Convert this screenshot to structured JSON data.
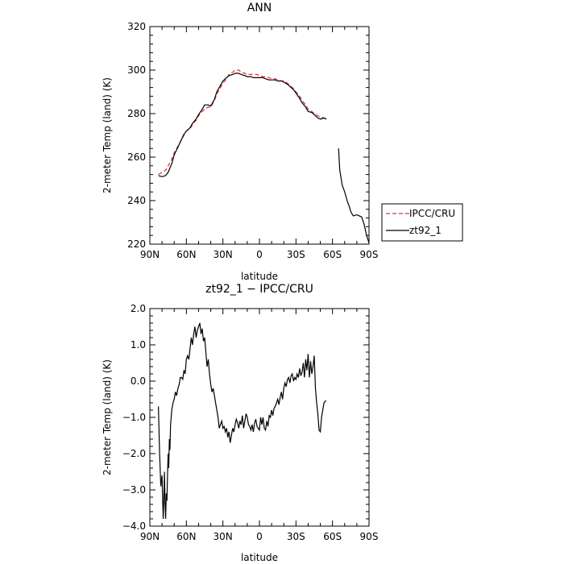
{
  "chart_data": [
    {
      "type": "line",
      "title": "ANN",
      "xlabel": "latitude",
      "ylabel": "2-meter Temp (land) (K)",
      "x_tick_labels": [
        "90N",
        "60N",
        "30N",
        "0",
        "30S",
        "60S",
        "90S"
      ],
      "y_tick_labels": [
        "220",
        "240",
        "260",
        "280",
        "300",
        "320"
      ],
      "xlim": [
        90,
        -90
      ],
      "ylim": [
        220,
        320
      ],
      "legend_position": "right",
      "series": [
        {
          "name": "IPCC/CRU",
          "color": "#e03030",
          "dash": true,
          "x": [
            83,
            80,
            77,
            75,
            72,
            70,
            67,
            65,
            62,
            60,
            57,
            55,
            52,
            50,
            47,
            45,
            42,
            40,
            37,
            35,
            32,
            30,
            27,
            25,
            22,
            20,
            17,
            15,
            12,
            10,
            7,
            5,
            2,
            0,
            -3,
            -5,
            -8,
            -10,
            -13,
            -15,
            -18,
            -20,
            -23,
            -25,
            -28,
            -30,
            -33,
            -35,
            -38,
            -40,
            -43,
            -45,
            -48,
            -50,
            -53,
            -55
          ],
          "y": [
            252,
            253,
            254,
            256,
            259,
            262,
            265,
            267,
            270,
            272,
            273,
            275,
            277,
            279,
            281,
            282,
            283,
            283,
            286,
            289,
            292,
            294,
            296,
            298,
            299,
            300,
            300,
            299,
            298.5,
            298,
            298,
            298,
            298,
            297.5,
            297,
            297,
            296.5,
            296,
            296,
            295.5,
            295,
            295,
            294,
            293,
            291.5,
            290,
            288,
            286,
            284,
            282,
            281,
            280,
            279,
            278.5,
            278,
            277.5
          ]
        },
        {
          "name": "zt92_1",
          "color": "#000000",
          "dash": false,
          "x": [
            83,
            80,
            77,
            75,
            72,
            70,
            67,
            65,
            62,
            60,
            57,
            55,
            52,
            50,
            47,
            45,
            42,
            40,
            37,
            35,
            32,
            30,
            27,
            25,
            22,
            20,
            17,
            15,
            12,
            10,
            7,
            5,
            2,
            0,
            -3,
            -5,
            -8,
            -10,
            -13,
            -15,
            -18,
            -20,
            -23,
            -25,
            -28,
            -30,
            -33,
            -35,
            -38,
            -40,
            -43,
            -45,
            -48,
            -50,
            -53,
            -55,
            -65,
            -66,
            -68,
            -70,
            -72,
            -74,
            -75,
            -77,
            -80,
            -82,
            -84,
            -86,
            -88,
            -90
          ],
          "y": [
            251.5,
            251,
            251.5,
            253,
            257,
            261,
            264.5,
            267,
            270.5,
            272,
            273.5,
            275.5,
            277.5,
            279.5,
            282,
            284,
            284,
            283.5,
            286.5,
            290,
            293,
            295,
            296.5,
            297.5,
            298,
            298.5,
            298.5,
            298,
            297.5,
            297,
            297,
            296.5,
            296.5,
            296.5,
            296.5,
            296,
            295.5,
            295.5,
            295.5,
            295,
            295,
            294.5,
            293.5,
            292.5,
            291,
            289.5,
            287,
            285,
            283,
            281,
            280.5,
            279.5,
            278,
            277.5,
            278,
            277.5,
            264,
            254,
            247,
            244,
            240,
            237,
            235,
            233,
            233.5,
            233,
            232.5,
            229,
            224,
            220.5
          ]
        }
      ]
    },
    {
      "type": "line",
      "title": "zt92_1 − IPCC/CRU",
      "xlabel": "latitude",
      "ylabel": "2-meter Temp (land) (K)",
      "x_tick_labels": [
        "90N",
        "60N",
        "30N",
        "0",
        "30S",
        "60S",
        "90S"
      ],
      "y_tick_labels": [
        "−4.0",
        "−3.0",
        "−2.0",
        "−1.0",
        "0.0",
        "1.0",
        "2.0"
      ],
      "xlim": [
        90,
        -90
      ],
      "ylim": [
        -4,
        2
      ],
      "series": [
        {
          "color": "#000000",
          "x": [
            83,
            82,
            81,
            80,
            79.5,
            79,
            78.5,
            78,
            77.5,
            77,
            76.5,
            76,
            75.5,
            75,
            74.5,
            74,
            73.5,
            73,
            72,
            71,
            70,
            69,
            68,
            67,
            66,
            65,
            64,
            63,
            62,
            61,
            60,
            59,
            58,
            57,
            56,
            55,
            54,
            53,
            52,
            51,
            50,
            49,
            48,
            47,
            46,
            45,
            44,
            43,
            42,
            41,
            40,
            39,
            38,
            37,
            36,
            35,
            34,
            33,
            32,
            31,
            30,
            29,
            28,
            27,
            26,
            25,
            24,
            23,
            22,
            21,
            20,
            19,
            18,
            17,
            16,
            15,
            14,
            13,
            12,
            11,
            10,
            9,
            8,
            7,
            6,
            5,
            4,
            3,
            2,
            1,
            0,
            -1,
            -2,
            -3,
            -4,
            -5,
            -6,
            -7,
            -8,
            -9,
            -10,
            -11,
            -12,
            -13,
            -14,
            -15,
            -16,
            -17,
            -18,
            -19,
            -20,
            -21,
            -22,
            -23,
            -24,
            -25,
            -26,
            -27,
            -28,
            -29,
            -30,
            -31,
            -32,
            -33,
            -34,
            -35,
            -36,
            -37,
            -38,
            -39,
            -40,
            -41,
            -42,
            -43,
            -44,
            -45,
            -46,
            -47,
            -48,
            -49,
            -50,
            -51,
            -52,
            -53,
            -54,
            -55
          ],
          "y": [
            -0.7,
            -2.0,
            -2.9,
            -2.6,
            -3.3,
            -3.8,
            -3.2,
            -2.5,
            -3.4,
            -3.8,
            -3.1,
            -3.3,
            -2.6,
            -2.0,
            -2.4,
            -1.6,
            -1.9,
            -1.2,
            -0.8,
            -0.6,
            -0.5,
            -0.3,
            -0.4,
            -0.2,
            -0.1,
            0.1,
            0.1,
            0.05,
            0.3,
            0.2,
            0.6,
            0.7,
            0.6,
            0.9,
            1.2,
            1.0,
            1.3,
            1.5,
            1.2,
            1.4,
            1.5,
            1.6,
            1.3,
            1.45,
            1.1,
            1.2,
            0.8,
            0.4,
            0.6,
            0.2,
            -0.1,
            -0.3,
            -0.2,
            -0.4,
            -0.6,
            -0.8,
            -1.0,
            -1.3,
            -1.2,
            -1.1,
            -1.3,
            -1.25,
            -1.4,
            -1.3,
            -1.55,
            -1.4,
            -1.7,
            -1.5,
            -1.3,
            -1.4,
            -1.2,
            -1.05,
            -1.15,
            -1.3,
            -1.1,
            -1.2,
            -0.95,
            -1.3,
            -1.1,
            -0.9,
            -1.0,
            -1.2,
            -1.25,
            -1.35,
            -1.2,
            -1.4,
            -1.15,
            -1.05,
            -1.25,
            -1.3,
            -1.35,
            -1.0,
            -1.2,
            -1.0,
            -1.3,
            -1.35,
            -1.1,
            -1.25,
            -0.95,
            -1.0,
            -0.8,
            -0.95,
            -0.75,
            -0.7,
            -0.6,
            -0.5,
            -0.65,
            -0.45,
            -0.3,
            -0.5,
            -0.2,
            -0.05,
            -0.15,
            0.05,
            0.1,
            -0.05,
            0.15,
            0.2,
            0.0,
            0.1,
            0.05,
            0.2,
            0.1,
            0.35,
            0.15,
            0.25,
            0.5,
            0.1,
            0.6,
            0.3,
            0.75,
            0.1,
            0.55,
            0.2,
            0.4,
            0.7,
            -0.2,
            -0.6,
            -0.9,
            -1.35,
            -1.4,
            -1.0,
            -0.8,
            -0.6,
            -0.55,
            -0.55
          ]
        }
      ]
    }
  ]
}
